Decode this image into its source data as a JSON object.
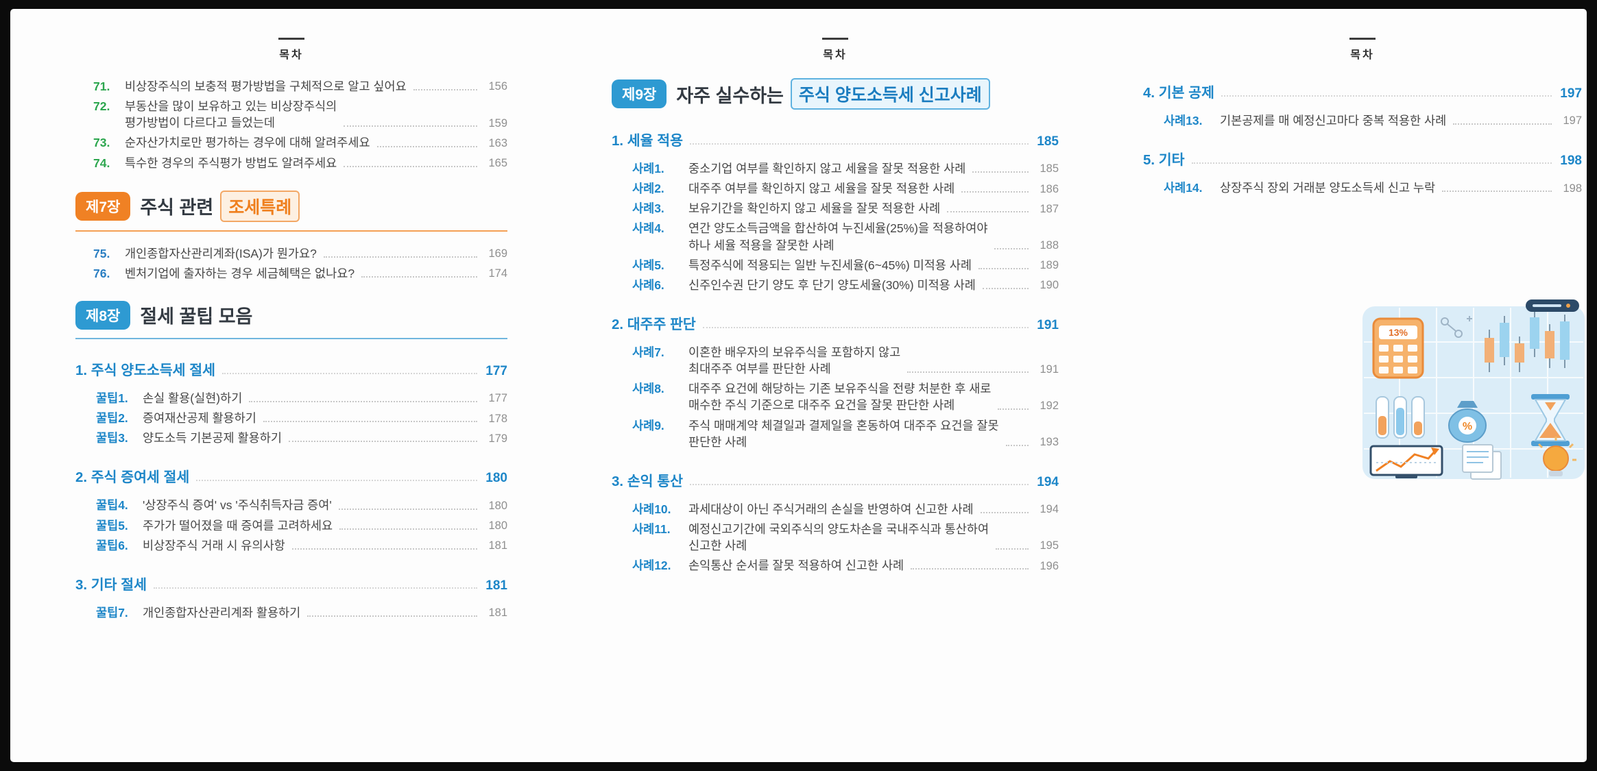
{
  "meta": {
    "toc_label": "목차"
  },
  "colors": {
    "green": "#2ca64e",
    "blue": "#1d86c8",
    "badge-blue": "#2e9ad2",
    "orange": "#f08124",
    "text": "#474747",
    "page-gray": "#8f8f8f"
  },
  "page1": {
    "questions": [
      {
        "num": "71.",
        "lines": [
          "비상장주식의 보충적 평가방법을 구체적으로 알고 싶어요"
        ],
        "page": "156"
      },
      {
        "num": "72.",
        "lines": [
          "부동산을 많이 보유하고 있는 비상장주식의",
          "평가방법이 다르다고 들었는데"
        ],
        "page": "159"
      },
      {
        "num": "73.",
        "lines": [
          "순자산가치로만 평가하는 경우에 대해 알려주세요"
        ],
        "page": "163"
      },
      {
        "num": "74.",
        "lines": [
          "특수한 경우의 주식평가 방법도 알려주세요"
        ],
        "page": "165"
      }
    ],
    "chapter7": {
      "badge": "제7장",
      "title_plain": "주식 관련",
      "title_highlight": "조세특례"
    },
    "chapter7_questions": [
      {
        "num": "75.",
        "lines": [
          "개인종합자산관리계좌(ISA)가 뭔가요?"
        ],
        "page": "169"
      },
      {
        "num": "76.",
        "lines": [
          "벤처기업에 출자하는 경우 세금혜택은 없나요?"
        ],
        "page": "174"
      }
    ],
    "chapter8": {
      "badge": "제8장",
      "title_plain": "절세 꿀팁 모음"
    },
    "sections": [
      {
        "title": "1. 주식 양도소득세 절세",
        "page": "177",
        "items": [
          {
            "num": "꿀팁1.",
            "lines": [
              "손실 활용(실현)하기"
            ],
            "page": "177"
          },
          {
            "num": "꿀팁2.",
            "lines": [
              "증여재산공제 활용하기"
            ],
            "page": "178"
          },
          {
            "num": "꿀팁3.",
            "lines": [
              "양도소득 기본공제 활용하기"
            ],
            "page": "179"
          }
        ]
      },
      {
        "title": "2. 주식 증여세 절세",
        "page": "180",
        "items": [
          {
            "num": "꿀팁4.",
            "lines": [
              "'상장주식 증여' vs '주식취득자금 증여'"
            ],
            "page": "180"
          },
          {
            "num": "꿀팁5.",
            "lines": [
              "주가가 떨어졌을 때 증여를 고려하세요"
            ],
            "page": "180"
          },
          {
            "num": "꿀팁6.",
            "lines": [
              "비상장주식 거래 시 유의사항"
            ],
            "page": "181"
          }
        ]
      },
      {
        "title": "3. 기타 절세",
        "page": "181",
        "items": [
          {
            "num": "꿀팁7.",
            "lines": [
              "개인종합자산관리계좌 활용하기"
            ],
            "page": "181"
          }
        ]
      }
    ]
  },
  "page2": {
    "chapter9": {
      "badge": "제9장",
      "title_plain": "자주 실수하는",
      "title_highlight": "주식 양도소득세 신고사례"
    },
    "sections": [
      {
        "title": "1. 세율 적용",
        "page": "185",
        "items": [
          {
            "num": "사례1.",
            "lines": [
              "중소기업 여부를 확인하지 않고 세율을 잘못 적용한 사례"
            ],
            "page": "185"
          },
          {
            "num": "사례2.",
            "lines": [
              "대주주 여부를 확인하지 않고 세율을 잘못 적용한 사례"
            ],
            "page": "186"
          },
          {
            "num": "사례3.",
            "lines": [
              "보유기간을 확인하지 않고 세율을 잘못 적용한 사례"
            ],
            "page": "187"
          },
          {
            "num": "사례4.",
            "lines": [
              "연간 양도소득금액을 합산하여 누진세율(25%)을 적용하여야",
              "하나 세율 적용을 잘못한 사례"
            ],
            "page": "188"
          },
          {
            "num": "사례5.",
            "lines": [
              "특정주식에 적용되는 일반 누진세율(6~45%) 미적용 사례"
            ],
            "page": "189"
          },
          {
            "num": "사례6.",
            "lines": [
              "신주인수권 단기 양도 후 단기 양도세율(30%) 미적용 사례"
            ],
            "page": "190"
          }
        ]
      },
      {
        "title": "2. 대주주 판단",
        "page": "191",
        "items": [
          {
            "num": "사례7.",
            "lines": [
              "이혼한 배우자의 보유주식을 포함하지 않고",
              "최대주주 여부를 판단한 사례"
            ],
            "page": "191"
          },
          {
            "num": "사례8.",
            "lines": [
              "대주주 요건에 해당하는 기존 보유주식을 전량 처분한 후 새로",
              "매수한 주식 기준으로 대주주 요건을 잘못 판단한 사례"
            ],
            "page": "192"
          },
          {
            "num": "사례9.",
            "lines": [
              "주식 매매계약 체결일과 결제일을 혼동하여 대주주 요건을 잘못",
              "판단한 사례"
            ],
            "page": "193"
          }
        ]
      },
      {
        "title": "3. 손익 통산",
        "page": "194",
        "items": [
          {
            "num": "사례10.",
            "lines": [
              "과세대상이 아닌 주식거래의 손실을 반영하여 신고한 사례"
            ],
            "page": "194"
          },
          {
            "num": "사례11.",
            "lines": [
              "예정신고기간에 국외주식의 양도차손을 국내주식과 통산하여",
              "신고한 사례"
            ],
            "page": "195"
          },
          {
            "num": "사례12.",
            "lines": [
              "손익통산 순서를 잘못 적용하여 신고한 사례"
            ],
            "page": "196"
          }
        ]
      }
    ]
  },
  "page3": {
    "sections": [
      {
        "title": "4. 기본 공제",
        "page": "197",
        "items": [
          {
            "num": "사례13.",
            "lines": [
              "기본공제를 매 예정신고마다 중복 적용한 사례"
            ],
            "page": "197"
          }
        ]
      },
      {
        "title": "5. 기타",
        "page": "198",
        "items": [
          {
            "num": "사례14.",
            "lines": [
              "상장주식 장외 거래분 양도소득세 신고 누락"
            ],
            "page": "198"
          }
        ]
      }
    ],
    "illustration": {
      "calculator_display": "13%",
      "moneybag_symbol": "%"
    }
  }
}
